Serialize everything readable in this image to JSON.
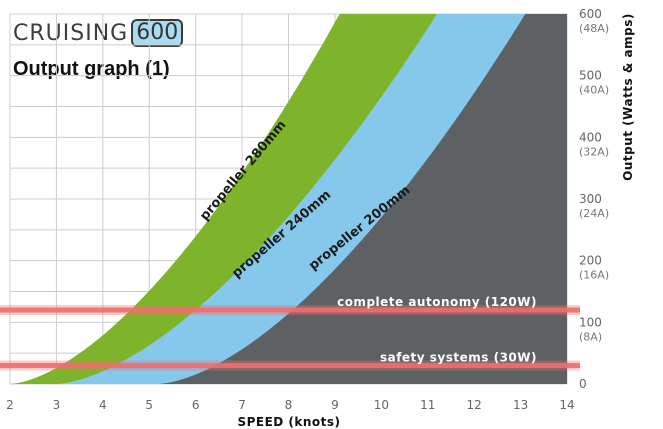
{
  "header": {
    "brand_word": "CRUISING",
    "brand_number": "600",
    "subtitle": "Output graph (1)"
  },
  "colors": {
    "propeller_280mm": "#7db42c",
    "propeller_240mm": "#86c8ec",
    "propeller_200mm": "#5d6163",
    "reference_line": "#f26d6d",
    "grid": "#cccccc"
  },
  "chart_data": {
    "type": "area",
    "xlabel": "SPEED (knots)",
    "ylabel": "Output (Watts & amps)",
    "xlim": [
      2,
      14
    ],
    "ylim": [
      0,
      600
    ],
    "x_ticks": [
      "2",
      "3",
      "4",
      "5",
      "6",
      "7",
      "8",
      "9",
      "10",
      "11",
      "12",
      "13",
      "14"
    ],
    "y_ticks": [
      {
        "value": 0,
        "label": "0",
        "sub": ""
      },
      {
        "value": 100,
        "label": "100",
        "sub": "(8A)"
      },
      {
        "value": 200,
        "label": "200",
        "sub": "(16A)"
      },
      {
        "value": 300,
        "label": "300",
        "sub": "(24A)"
      },
      {
        "value": 400,
        "label": "400",
        "sub": "(32A)"
      },
      {
        "value": 500,
        "label": "500",
        "sub": "(40A)"
      },
      {
        "value": 600,
        "label": "600",
        "sub": "(48A)"
      }
    ],
    "series": [
      {
        "name": "propeller 280mm",
        "start_knots": 2.0,
        "end_knots": 9.1
      },
      {
        "name": "propeller 240mm",
        "start_knots": 3.0,
        "end_knots": 11.2
      },
      {
        "name": "propeller 200mm",
        "start_knots": 5.2,
        "end_knots": 13.1
      }
    ],
    "reference_lines": [
      {
        "label": "complete autonomy (120W)",
        "value": 120
      },
      {
        "label": "safety systems (30W)",
        "value": 30
      }
    ],
    "grid": true
  }
}
